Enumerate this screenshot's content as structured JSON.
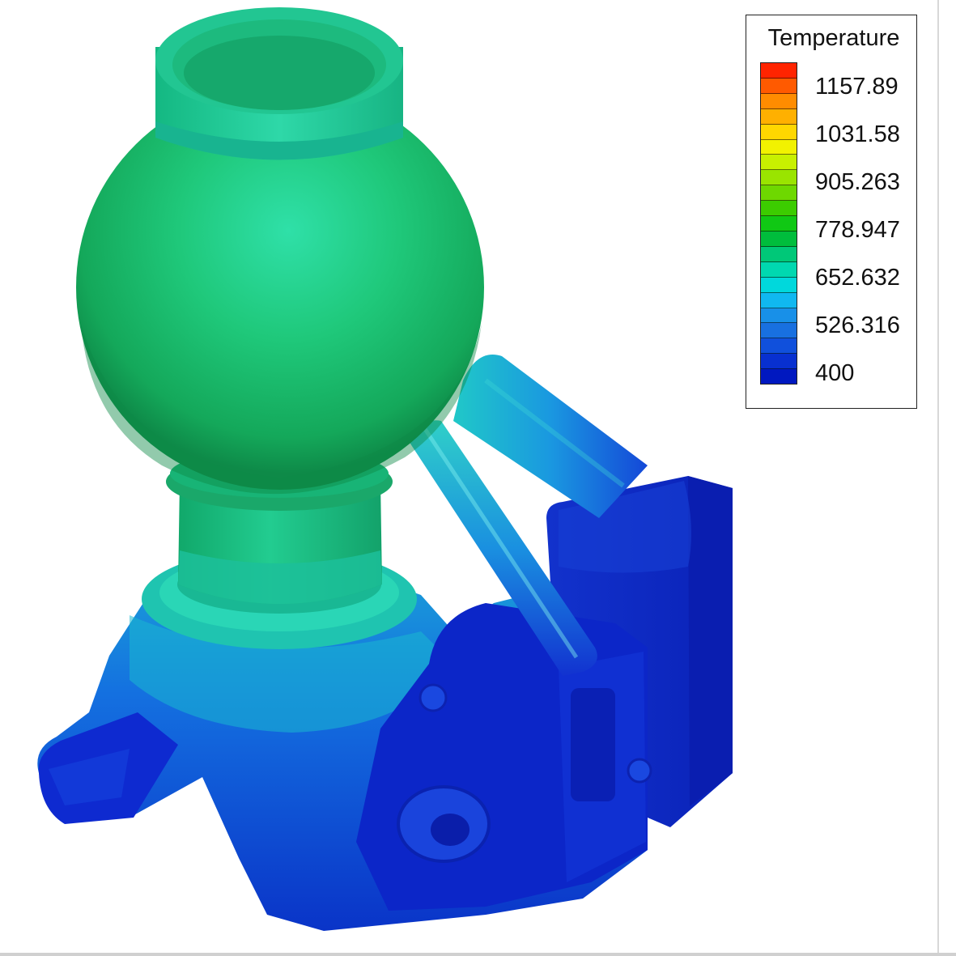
{
  "legend": {
    "title": "Temperature",
    "ticks": [
      "1157.89",
      "1031.58",
      "905.263",
      "778.947",
      "652.632",
      "526.316",
      "400"
    ],
    "colors": [
      "#ff2400",
      "#ff5a00",
      "#ff8c00",
      "#ffb000",
      "#ffd700",
      "#f2f200",
      "#c8f000",
      "#9ae400",
      "#6ed800",
      "#3ccc00",
      "#10c814",
      "#00bd3c",
      "#00c878",
      "#00d8b0",
      "#00d8dc",
      "#10b8f0",
      "#1890e8",
      "#1870e0",
      "#1050dc",
      "#0830d0",
      "#0018c0"
    ]
  },
  "chart_data": {
    "type": "heatmap",
    "title": "Temperature",
    "colorbar_ticks": [
      1157.89,
      1031.58,
      905.263,
      778.947,
      652.632,
      526.316,
      400
    ],
    "colorbar_range": [
      400,
      1200
    ]
  }
}
